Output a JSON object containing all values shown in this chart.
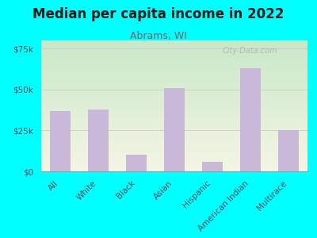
{
  "title": "Median per capita income in 2022",
  "subtitle": "Abrams, WI",
  "categories": [
    "All",
    "White",
    "Black",
    "Asian",
    "Hispanic",
    "American Indian",
    "Multirace"
  ],
  "values": [
    37000,
    38000,
    10000,
    51000,
    6000,
    63000,
    25000
  ],
  "bar_color": "#c9b8d8",
  "background_color": "#00ffff",
  "plot_bg_top_left": "#c8e8c8",
  "plot_bg_bottom_right": "#f5f5e5",
  "title_color": "#1a1a1a",
  "subtitle_color": "#8B5A6B",
  "tick_label_color": "#5a4a5a",
  "ylim": [
    0,
    80000
  ],
  "yticks": [
    0,
    25000,
    50000,
    75000
  ],
  "ytick_labels": [
    "$0",
    "$25k",
    "$50k",
    "$75k"
  ],
  "watermark": "City-Data.com",
  "grid_color": "#cccccc"
}
